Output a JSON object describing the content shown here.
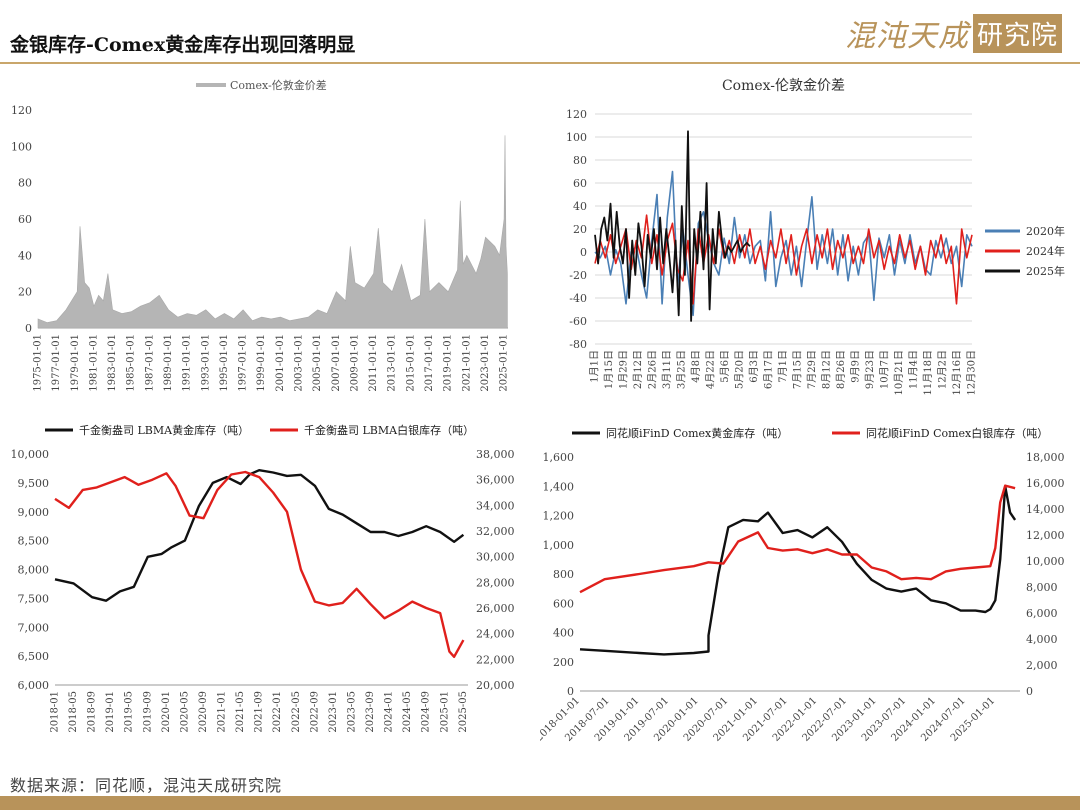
{
  "header": {
    "title": "金银库存-Comex黄金库存出现回落明显"
  },
  "logo": {
    "left_text": "混沌天成",
    "right_text": "研究院"
  },
  "footer": {
    "source": "数据来源：同花顺，混沌天成研究院"
  },
  "colors": {
    "gold_rule": "#c9a66b",
    "gold_bar": "#b8935a",
    "grey_series": "#b5b5b5",
    "blue_series": "#4a7fb5",
    "red_series": "#e0201c",
    "black_series": "#111111"
  },
  "chart_data": [
    {
      "type": "area",
      "legend": [
        "Comex-伦敦金价差"
      ],
      "legend_position": "top",
      "x_start": "1975-01-01",
      "x_end": "2025-06-01",
      "xticks": [
        "1975-01-01",
        "1977-01-01",
        "1979-01-01",
        "1981-01-01",
        "1983-01-01",
        "1985-01-01",
        "1987-01-01",
        "1989-01-01",
        "1991-01-01",
        "1993-01-01",
        "1995-01-01",
        "1997-01-01",
        "1999-01-01",
        "2001-01-01",
        "2003-01-01",
        "2005-01-01",
        "2007-01-01",
        "2009-01-01",
        "2011-01-01",
        "2013-01-01",
        "2015-01-01",
        "2017-01-01",
        "2019-01-01",
        "2021-01-01",
        "2023-01-01",
        "2025-01-01"
      ],
      "ylim": [
        0,
        120
      ],
      "yticks": [
        0,
        20,
        40,
        60,
        80,
        100,
        120
      ],
      "series": [
        {
          "name": "Comex-伦敦金价差",
          "x": [
            1975.0,
            1976.0,
            1977.0,
            1978.0,
            1979.2,
            1979.5,
            1980.0,
            1980.5,
            1981.0,
            1981.5,
            1982.0,
            1982.5,
            1983.0,
            1984.0,
            1985.0,
            1986.0,
            1987.0,
            1988.0,
            1989.0,
            1990.0,
            1991.0,
            1992.0,
            1993.0,
            1994.0,
            1995.0,
            1996.0,
            1997.0,
            1998.0,
            1999.0,
            2000.0,
            2001.0,
            2002.0,
            2003.0,
            2004.0,
            2005.0,
            2006.0,
            2007.0,
            2008.0,
            2008.5,
            2009.0,
            2010.0,
            2011.0,
            2011.5,
            2012.0,
            2013.0,
            2014.0,
            2015.0,
            2016.0,
            2016.5,
            2017.0,
            2018.0,
            2019.0,
            2020.0,
            2020.3,
            2020.6,
            2021.0,
            2022.0,
            2022.5,
            2023.0,
            2024.0,
            2024.5,
            2025.0,
            2025.1,
            2025.2,
            2025.35
          ],
          "y": [
            5,
            3,
            4,
            10,
            20,
            56,
            25,
            22,
            12,
            18,
            15,
            30,
            10,
            8,
            9,
            12,
            14,
            18,
            10,
            6,
            8,
            7,
            10,
            5,
            8,
            5,
            10,
            4,
            6,
            5,
            6,
            4,
            5,
            6,
            10,
            8,
            20,
            15,
            45,
            25,
            22,
            30,
            55,
            25,
            20,
            35,
            15,
            18,
            60,
            20,
            25,
            20,
            32,
            70,
            35,
            40,
            30,
            38,
            50,
            45,
            40,
            60,
            106,
            45,
            30
          ]
        }
      ]
    },
    {
      "type": "line",
      "title": "Comex-伦敦金价差",
      "legend_position": "right",
      "xticks": [
        "1月1日",
        "1月15日",
        "1月29日",
        "2月12日",
        "2月26日",
        "3月11日",
        "3月25日",
        "4月8日",
        "4月22日",
        "5月6日",
        "5月20日",
        "6月3日",
        "6月17日",
        "7月1日",
        "7月15日",
        "7月29日",
        "8月12日",
        "8月26日",
        "9月9日",
        "9月23日",
        "10月7日",
        "10月21日",
        "11月4日",
        "11月18日",
        "12月2日",
        "12月16日",
        "12月30日"
      ],
      "ylim": [
        -80,
        120
      ],
      "yticks": [
        -80,
        -60,
        -40,
        -20,
        0,
        20,
        40,
        60,
        80,
        100,
        120
      ],
      "series": [
        {
          "name": "2020年",
          "color": "#4a7fb5",
          "x": [
            0,
            5,
            10,
            15,
            20,
            25,
            30,
            35,
            40,
            45,
            50,
            55,
            60,
            65,
            70,
            75,
            80,
            85,
            90,
            95,
            100,
            105,
            110,
            115,
            120,
            125,
            130,
            135,
            140,
            145,
            150,
            155,
            160,
            165,
            170,
            175,
            180,
            185,
            190,
            195,
            200,
            205,
            210,
            215,
            220,
            225,
            230,
            235,
            240,
            245,
            250,
            255,
            260,
            265,
            270,
            275,
            280,
            285,
            290,
            295,
            300,
            305,
            310,
            315,
            320,
            325,
            330,
            335,
            340,
            345,
            350,
            355,
            360,
            365
          ],
          "y": [
            0,
            -5,
            5,
            -20,
            2,
            -10,
            -45,
            0,
            5,
            -20,
            -40,
            10,
            50,
            -45,
            30,
            70,
            -30,
            20,
            -20,
            -55,
            25,
            35,
            10,
            -10,
            -20,
            12,
            -10,
            30,
            -5,
            15,
            -10,
            5,
            10,
            -25,
            35,
            -30,
            -5,
            10,
            -20,
            5,
            -30,
            10,
            48,
            -15,
            15,
            -10,
            20,
            -20,
            15,
            -25,
            5,
            -20,
            8,
            15,
            -42,
            12,
            -5,
            15,
            -20,
            10,
            -10,
            15,
            -10,
            5,
            -15,
            -20,
            10,
            -5,
            12,
            -10,
            5,
            -30,
            15,
            5
          ]
        },
        {
          "name": "2024年",
          "color": "#e0201c",
          "x": [
            0,
            5,
            10,
            15,
            20,
            25,
            30,
            35,
            40,
            45,
            50,
            55,
            60,
            65,
            70,
            75,
            80,
            85,
            90,
            95,
            100,
            105,
            110,
            115,
            120,
            125,
            130,
            135,
            140,
            145,
            150,
            155,
            160,
            165,
            170,
            175,
            180,
            185,
            190,
            195,
            200,
            205,
            210,
            215,
            220,
            225,
            230,
            235,
            240,
            245,
            250,
            255,
            260,
            265,
            270,
            275,
            280,
            285,
            290,
            295,
            300,
            305,
            310,
            315,
            320,
            325,
            330,
            335,
            340,
            345,
            350,
            355,
            360,
            365
          ],
          "y": [
            -10,
            10,
            -5,
            15,
            -10,
            5,
            20,
            -15,
            10,
            -5,
            32,
            -10,
            15,
            -20,
            10,
            25,
            -15,
            -25,
            10,
            -45,
            20,
            -10,
            15,
            -10,
            20,
            -5,
            10,
            -10,
            15,
            -5,
            20,
            -10,
            5,
            -15,
            10,
            -5,
            20,
            -10,
            15,
            -20,
            5,
            20,
            -10,
            15,
            -5,
            20,
            -15,
            10,
            -5,
            15,
            -10,
            5,
            -10,
            20,
            -5,
            10,
            -15,
            5,
            -10,
            15,
            -5,
            10,
            -15,
            5,
            -20,
            10,
            -5,
            15,
            -10,
            5,
            -45,
            20,
            -5,
            15
          ]
        },
        {
          "name": "2025年",
          "color": "#111111",
          "x": [
            0,
            3,
            6,
            9,
            12,
            15,
            18,
            21,
            24,
            27,
            30,
            33,
            36,
            39,
            42,
            45,
            48,
            51,
            54,
            57,
            60,
            63,
            66,
            69,
            72,
            75,
            78,
            81,
            84,
            87,
            90,
            93,
            96,
            99,
            102,
            105,
            108,
            111,
            114,
            117,
            120,
            123,
            126,
            129,
            132,
            135,
            138,
            141,
            144,
            147,
            150
          ],
          "y": [
            15,
            -10,
            20,
            30,
            10,
            42,
            -5,
            35,
            5,
            -10,
            20,
            -40,
            10,
            -20,
            25,
            5,
            -30,
            15,
            -5,
            20,
            -15,
            30,
            -10,
            20,
            -5,
            -35,
            10,
            -55,
            40,
            -20,
            105,
            -60,
            20,
            -10,
            35,
            -15,
            60,
            -50,
            20,
            -10,
            35,
            10,
            -5,
            5,
            0,
            5,
            10,
            0,
            5,
            8,
            5
          ]
        }
      ]
    },
    {
      "type": "line",
      "legend_position": "top",
      "x_start": "2018-01",
      "x_end": "2025-06",
      "xticks": [
        "2018-01",
        "2018-05",
        "2018-09",
        "2019-01",
        "2019-05",
        "2019-09",
        "2020-01",
        "2020-05",
        "2020-09",
        "2021-01",
        "2021-05",
        "2021-09",
        "2022-01",
        "2022-05",
        "2022-09",
        "2023-01",
        "2023-05",
        "2023-09",
        "2024-01",
        "2024-05",
        "2024-09",
        "2025-01",
        "2025-05"
      ],
      "ylim_left": [
        6000,
        10000
      ],
      "yticks_left": [
        6000,
        6500,
        7000,
        7500,
        8000,
        8500,
        9000,
        9500,
        10000
      ],
      "ylim_right": [
        20000,
        38000
      ],
      "yticks_right": [
        20000,
        22000,
        24000,
        26000,
        28000,
        30000,
        32000,
        34000,
        36000,
        38000
      ],
      "series": [
        {
          "name": "千金衡盎司 LBMA黄金库存（吨）",
          "axis": "left",
          "color": "#111111",
          "x": [
            "2018-01",
            "2018-05",
            "2018-09",
            "2018-12",
            "2019-03",
            "2019-06",
            "2019-09",
            "2019-12",
            "2020-02",
            "2020-05",
            "2020-08",
            "2020-11",
            "2021-02",
            "2021-05",
            "2021-07",
            "2021-09",
            "2021-12",
            "2022-03",
            "2022-06",
            "2022-09",
            "2022-12",
            "2023-03",
            "2023-06",
            "2023-09",
            "2023-12",
            "2024-03",
            "2024-06",
            "2024-09",
            "2024-12",
            "2025-03",
            "2025-05"
          ],
          "y": [
            7830,
            7760,
            7520,
            7460,
            7620,
            7700,
            8220,
            8270,
            8380,
            8500,
            9100,
            9500,
            9600,
            9480,
            9650,
            9720,
            9680,
            9620,
            9640,
            9450,
            9050,
            8950,
            8800,
            8650,
            8650,
            8580,
            8650,
            8750,
            8650,
            8480,
            8600
          ]
        },
        {
          "name": "千金衡盎司 LBMA白银库存（吨）",
          "axis": "right",
          "color": "#e0201c",
          "x": [
            "2018-01",
            "2018-04",
            "2018-07",
            "2018-10",
            "2019-01",
            "2019-04",
            "2019-07",
            "2019-10",
            "2020-01",
            "2020-03",
            "2020-06",
            "2020-09",
            "2020-12",
            "2021-03",
            "2021-06",
            "2021-09",
            "2021-12",
            "2022-03",
            "2022-06",
            "2022-09",
            "2022-12",
            "2023-03",
            "2023-06",
            "2023-09",
            "2023-12",
            "2024-03",
            "2024-06",
            "2024-09",
            "2024-12",
            "2025-02",
            "2025-03",
            "2025-05"
          ],
          "y": [
            34500,
            33800,
            35200,
            35400,
            35800,
            36200,
            35600,
            36000,
            36500,
            35500,
            33200,
            33000,
            35200,
            36400,
            36600,
            36200,
            35000,
            33500,
            29000,
            26500,
            26200,
            26400,
            27500,
            26300,
            25200,
            25800,
            26500,
            26000,
            25600,
            22600,
            22200,
            23500
          ]
        }
      ]
    },
    {
      "type": "line",
      "legend_position": "top",
      "x_start": "2018-01-01",
      "x_end": "2025-06-01",
      "xticks": [
        "2018-01-01",
        "2018-07-01",
        "2019-01-01",
        "2019-07-01",
        "2020-01-01",
        "2020-07-01",
        "2021-01-01",
        "2021-07-01",
        "2022-01-01",
        "2022-07-01",
        "2023-01-01",
        "2023-07-01",
        "2024-01-01",
        "2024-07-01",
        "2025-01-01"
      ],
      "ylim_left": [
        0,
        1600
      ],
      "yticks_left": [
        0,
        200,
        400,
        600,
        800,
        1000,
        1200,
        1400,
        1600
      ],
      "ylim_right": [
        0,
        18000
      ],
      "yticks_right": [
        0,
        2000,
        4000,
        6000,
        8000,
        10000,
        12000,
        14000,
        16000,
        18000
      ],
      "series": [
        {
          "name": "同花顺iFinD Comex黄金库存（吨）",
          "axis": "left",
          "color": "#111111",
          "x": [
            "2018-01",
            "2018-06",
            "2019-01",
            "2019-06",
            "2019-12",
            "2020-03",
            "2020-03",
            "2020-05",
            "2020-07",
            "2020-10",
            "2021-01",
            "2021-03",
            "2021-06",
            "2021-09",
            "2021-12",
            "2022-03",
            "2022-06",
            "2022-09",
            "2022-12",
            "2023-03",
            "2023-06",
            "2023-09",
            "2023-12",
            "2024-03",
            "2024-06",
            "2024-09",
            "2024-11",
            "2024-12",
            "2025-01",
            "2025-02",
            "2025-03",
            "2025-04",
            "2025-05"
          ],
          "y": [
            285,
            275,
            260,
            250,
            260,
            270,
            380,
            800,
            1120,
            1170,
            1160,
            1220,
            1080,
            1100,
            1050,
            1120,
            1020,
            870,
            760,
            700,
            680,
            700,
            620,
            600,
            550,
            550,
            540,
            560,
            620,
            900,
            1400,
            1220,
            1170
          ]
        },
        {
          "name": "同花顺iFinD Comex白银库存（吨）",
          "axis": "right",
          "color": "#e0201c",
          "x": [
            "2018-01",
            "2018-06",
            "2019-01",
            "2019-06",
            "2019-12",
            "2020-03",
            "2020-06",
            "2020-09",
            "2021-01",
            "2021-03",
            "2021-06",
            "2021-09",
            "2021-12",
            "2022-03",
            "2022-06",
            "2022-09",
            "2022-12",
            "2023-03",
            "2023-06",
            "2023-09",
            "2023-12",
            "2024-03",
            "2024-06",
            "2024-09",
            "2024-12",
            "2025-01",
            "2025-02",
            "2025-03",
            "2025-05"
          ],
          "y": [
            7600,
            8600,
            9000,
            9300,
            9600,
            9900,
            9800,
            11500,
            12200,
            11000,
            10800,
            10900,
            10600,
            10900,
            10500,
            10500,
            9500,
            9200,
            8600,
            8700,
            8600,
            9200,
            9400,
            9500,
            9600,
            11000,
            14500,
            15800,
            15600
          ]
        }
      ]
    }
  ]
}
